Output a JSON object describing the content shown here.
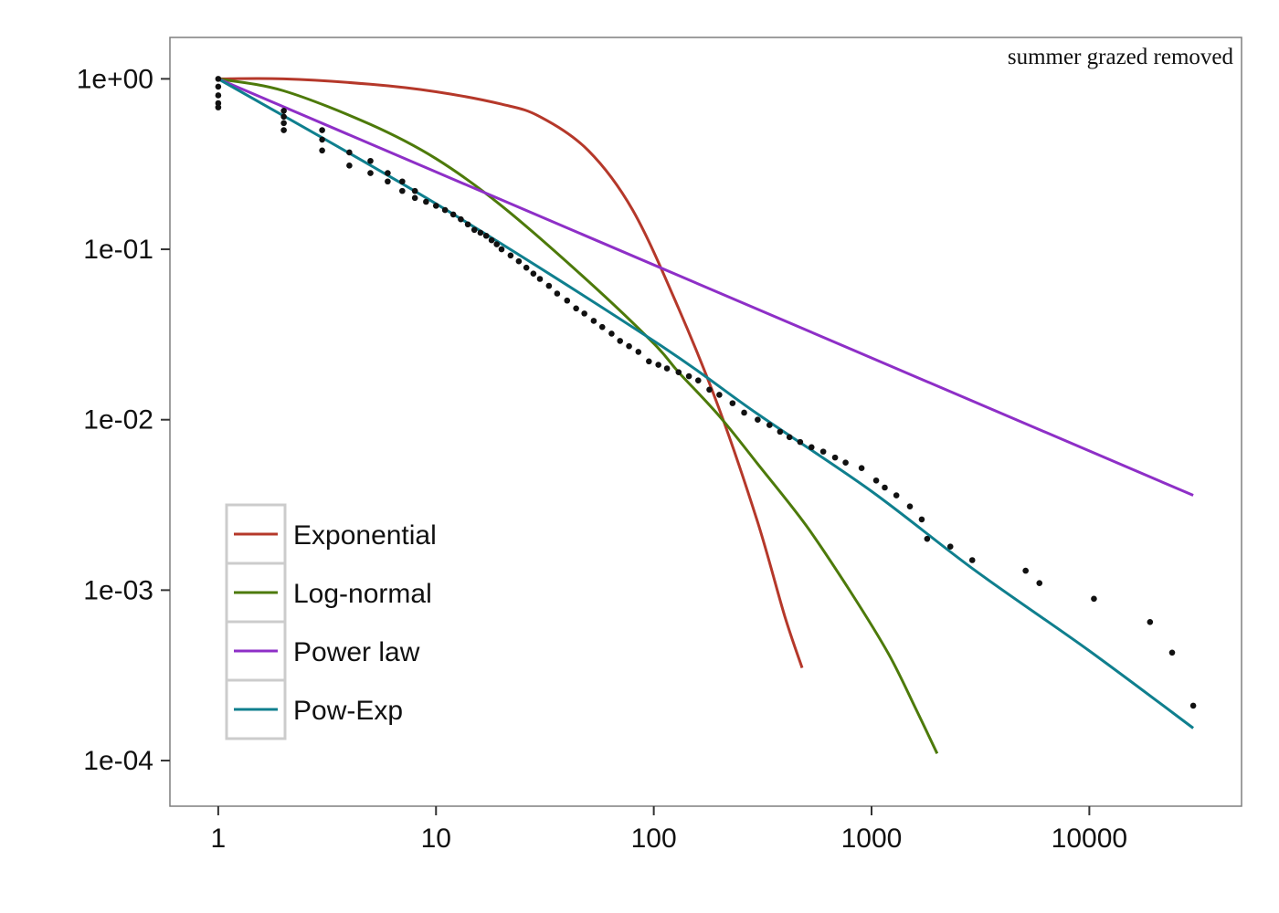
{
  "chart_data": {
    "type": "line",
    "title": "",
    "xlabel": "",
    "ylabel": "",
    "x_scale": "log10",
    "y_scale": "log10",
    "xlim": [
      0.6,
      50000
    ],
    "ylim": [
      5.4e-05,
      1.75
    ],
    "x_ticks": [
      {
        "value": 1,
        "label": "1"
      },
      {
        "value": 10,
        "label": "10"
      },
      {
        "value": 100,
        "label": "100"
      },
      {
        "value": 1000,
        "label": "1000"
      },
      {
        "value": 10000,
        "label": "10000"
      }
    ],
    "y_ticks": [
      {
        "value": 1,
        "label": "1e+00"
      },
      {
        "value": 0.1,
        "label": "1e-01"
      },
      {
        "value": 0.01,
        "label": "1e-02"
      },
      {
        "value": 0.001,
        "label": "1e-03"
      },
      {
        "value": 0.0001,
        "label": "1e-04"
      }
    ],
    "grid": false,
    "annotation": "summer grazed removed",
    "legend": {
      "position": "bottom-left",
      "entries": [
        {
          "name": "Exponential",
          "color": "#b5382a"
        },
        {
          "name": "Log-normal",
          "color": "#4d7a0a"
        },
        {
          "name": "Power law",
          "color": "#8e2fc7"
        },
        {
          "name": "Pow-Exp",
          "color": "#0f7f8e"
        }
      ]
    },
    "series": [
      {
        "name": "Exponential",
        "color": "#b5382a",
        "x": [
          1,
          2,
          5,
          10,
          20,
          30,
          50,
          80,
          130,
          200,
          300,
          400,
          480
        ],
        "y": [
          1.0,
          1.0,
          0.93,
          0.84,
          0.71,
          0.6,
          0.38,
          0.17,
          0.045,
          0.0115,
          0.0025,
          0.0007,
          0.00035
        ]
      },
      {
        "name": "Log-normal",
        "color": "#4d7a0a",
        "x": [
          1,
          2,
          5,
          10,
          20,
          50,
          100,
          130,
          200,
          300,
          500,
          800,
          1200,
          1600,
          2000
        ],
        "y": [
          1.0,
          0.85,
          0.54,
          0.34,
          0.18,
          0.065,
          0.028,
          0.019,
          0.0105,
          0.0055,
          0.0024,
          0.00098,
          0.00042,
          0.0002,
          0.00011
        ]
      },
      {
        "name": "Power law",
        "color": "#8e2fc7",
        "x": [
          1,
          30000
        ],
        "y": [
          1.0,
          0.0036
        ]
      },
      {
        "name": "Pow-Exp",
        "color": "#0f7f8e",
        "x": [
          1,
          10,
          100,
          300,
          1000,
          3000,
          10000,
          30000
        ],
        "y": [
          1.0,
          0.185,
          0.029,
          0.0108,
          0.0038,
          0.0013,
          0.00044,
          0.000155
        ]
      }
    ],
    "points": {
      "name": "Observed",
      "color": "#111111",
      "x": [
        1,
        1,
        1,
        1,
        1,
        2,
        2,
        2,
        2,
        3,
        3,
        3,
        4,
        4,
        5,
        5,
        6,
        6,
        7,
        7,
        8,
        8,
        9,
        10,
        11,
        12,
        13,
        14,
        15,
        16,
        17,
        18,
        19,
        20,
        22,
        24,
        26,
        28,
        30,
        33,
        36,
        40,
        44,
        48,
        53,
        58,
        64,
        70,
        77,
        85,
        95,
        105,
        115,
        130,
        145,
        160,
        180,
        200,
        230,
        260,
        300,
        340,
        380,
        420,
        470,
        530,
        600,
        680,
        760,
        900,
        1050,
        1150,
        1300,
        1500,
        1700,
        1800,
        2300,
        2900,
        5100,
        5900,
        10500,
        19000,
        24000,
        30000
      ],
      "y": [
        1.0,
        0.9,
        0.8,
        0.72,
        0.68,
        0.65,
        0.6,
        0.55,
        0.5,
        0.5,
        0.44,
        0.38,
        0.37,
        0.31,
        0.33,
        0.28,
        0.28,
        0.25,
        0.25,
        0.22,
        0.22,
        0.2,
        0.19,
        0.18,
        0.17,
        0.16,
        0.15,
        0.14,
        0.13,
        0.125,
        0.12,
        0.113,
        0.107,
        0.1,
        0.092,
        0.085,
        0.078,
        0.072,
        0.067,
        0.061,
        0.055,
        0.05,
        0.045,
        0.042,
        0.038,
        0.035,
        0.032,
        0.029,
        0.027,
        0.025,
        0.022,
        0.021,
        0.02,
        0.019,
        0.018,
        0.017,
        0.015,
        0.014,
        0.0125,
        0.011,
        0.01,
        0.0093,
        0.0085,
        0.0079,
        0.0074,
        0.0069,
        0.0065,
        0.006,
        0.0056,
        0.0052,
        0.0044,
        0.004,
        0.0036,
        0.0031,
        0.0026,
        0.002,
        0.0018,
        0.0015,
        0.0013,
        0.0011,
        0.00089,
        0.00065,
        0.00043,
        0.00021
      ]
    }
  }
}
